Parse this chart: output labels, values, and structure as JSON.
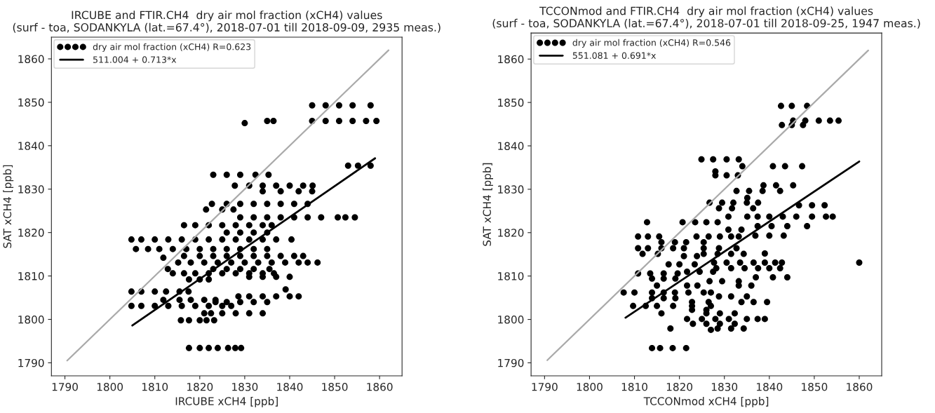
{
  "chart_data": [
    {
      "type": "scatter",
      "title": "IRCUBE and FTIR.CH4  dry air mol fraction (xCH4) values\n(surf - toa, SODANKYLA (lat.=67.4°), 2018-07-01 till 2018-09-09, 2935 meas.)",
      "xlabel": "IRCUBE xCH4 [ppb]",
      "ylabel": "SAT xCH4 [ppb]",
      "xlim": [
        1787,
        1865
      ],
      "ylim": [
        1787,
        1865
      ],
      "xticks": [
        1790,
        1800,
        1810,
        1820,
        1830,
        1840,
        1850,
        1860
      ],
      "yticks": [
        1790,
        1800,
        1810,
        1820,
        1830,
        1840,
        1850,
        1860
      ],
      "grid": false,
      "legend": "top left",
      "series": [
        {
          "name": "dry air mol fraction (xCH4) R=0.623",
          "color": "#000000",
          "marker": "circle",
          "x": [
            1845.0,
            1848.0,
            1851.0,
            1854.0,
            1858.0,
            1845.0,
            1848.0,
            1851.0,
            1854.0,
            1857.0,
            1859.3,
            1835.0,
            1836.4,
            1830.0,
            1853.0,
            1855.2,
            1858.0,
            1823.0,
            1826.0,
            1829.0,
            1832.4,
            1835.3,
            1827.8,
            1831.0,
            1834.0,
            1837.0,
            1840.0,
            1843.0,
            1845.1,
            1834.0,
            1838.0,
            1842.0,
            1845.0,
            1822.7,
            1826.0,
            1829.0,
            1832.0,
            1835.0,
            1838.0,
            1841.0,
            1844.0,
            1821.4,
            1825.0,
            1827.5,
            1829.0,
            1832.0,
            1835.0,
            1838.0,
            1841.0,
            1844.0,
            1847.0,
            1850.7,
            1852.4,
            1854.5,
            1816.5,
            1819.0,
            1822.0,
            1825.0,
            1828.0,
            1831.0,
            1834.0,
            1836.0,
            1826.0,
            1829.0,
            1832.0,
            1835.0,
            1804.8,
            1807.0,
            1810.0,
            1813.0,
            1816.0,
            1819.0,
            1822.0,
            1825.0,
            1828.0,
            1831.0,
            1834.0,
            1837.0,
            1840.4,
            1805.8,
            1808.5,
            1811.0,
            1814.0,
            1817.0,
            1820.0,
            1823.0,
            1826.0,
            1829.0,
            1832.0,
            1835.0,
            1816.5,
            1820.0,
            1823.0,
            1826.0,
            1829.0,
            1832.0,
            1835.0,
            1838.0,
            1841.0,
            1843.0,
            1811.9,
            1815.2,
            1818.0,
            1821.0,
            1824.0,
            1827.0,
            1830.0,
            1833.0,
            1836.0,
            1839.0,
            1842.0,
            1844.0,
            1846.2,
            1812.9,
            1823.0,
            1826.0,
            1829.0,
            1832.0,
            1835.5,
            1814.0,
            1816.5,
            1819.0,
            1822.0,
            1825.0,
            1828.0,
            1831.0,
            1834.0,
            1836.5,
            1831.0,
            1834.0,
            1837.0,
            1840.0,
            1817.6,
            1820.0,
            1822.0,
            1839.1,
            1804.8,
            1807.0,
            1810.0,
            1812.5,
            1815.5,
            1817.5,
            1828.6,
            1831.0,
            1834.0,
            1837.0,
            1840.0,
            1842.0,
            1811.9,
            1815.5,
            1818.0,
            1821.0,
            1823.5,
            1823.5,
            1826.0,
            1829.0,
            1832.0,
            1835.0,
            1804.8,
            1807.0,
            1810.0,
            1813.0,
            1816.0,
            1819.0,
            1822.0,
            1825.0,
            1827.0,
            1821.0,
            1822.5,
            1825.0,
            1828.0,
            1831.0,
            1834.0,
            1815.8,
            1817.6,
            1820.0,
            1821.5,
            1823.2,
            1817.6,
            1820.0,
            1822.0,
            1824.0,
            1826.3,
            1827.9,
            1829.2
          ],
          "values": [
            1849.3,
            1849.3,
            1849.3,
            1849.3,
            1849.3,
            1845.7,
            1845.7,
            1845.7,
            1845.7,
            1845.7,
            1845.7,
            1845.7,
            1845.7,
            1845.2,
            1835.4,
            1835.4,
            1835.4,
            1833.3,
            1833.3,
            1833.3,
            1833.3,
            1833.3,
            1830.8,
            1830.8,
            1830.8,
            1830.8,
            1830.8,
            1830.8,
            1830.8,
            1829.5,
            1829.5,
            1829.5,
            1829.5,
            1826.6,
            1826.6,
            1826.6,
            1826.6,
            1826.6,
            1826.6,
            1826.6,
            1826.6,
            1825.3,
            1825.3,
            1825.3,
            1823.5,
            1823.5,
            1823.5,
            1823.5,
            1823.5,
            1823.5,
            1823.5,
            1823.5,
            1823.5,
            1823.5,
            1821.7,
            1821.7,
            1821.7,
            1821.7,
            1821.7,
            1821.7,
            1821.7,
            1821.7,
            1820.0,
            1820.0,
            1820.0,
            1820.0,
            1818.4,
            1818.4,
            1818.4,
            1818.4,
            1818.4,
            1818.4,
            1818.4,
            1818.4,
            1818.4,
            1818.4,
            1818.4,
            1818.4,
            1818.4,
            1816.2,
            1816.2,
            1816.2,
            1816.2,
            1816.2,
            1816.2,
            1816.2,
            1816.2,
            1816.2,
            1816.2,
            1816.2,
            1814.6,
            1814.6,
            1814.6,
            1814.6,
            1814.6,
            1814.6,
            1814.6,
            1814.6,
            1814.6,
            1814.6,
            1814.2,
            1813.1,
            1813.1,
            1813.1,
            1813.1,
            1813.1,
            1813.1,
            1813.1,
            1813.1,
            1813.1,
            1813.1,
            1813.1,
            1813.1,
            1811.6,
            1811.6,
            1811.6,
            1811.6,
            1811.6,
            1811.6,
            1810.6,
            1810.6,
            1810.6,
            1810.6,
            1810.6,
            1810.6,
            1810.6,
            1810.6,
            1810.6,
            1809.8,
            1809.8,
            1809.8,
            1809.8,
            1809.2,
            1809.2,
            1809.2,
            1806.9,
            1806.4,
            1806.4,
            1806.4,
            1806.4,
            1806.4,
            1806.4,
            1805.3,
            1805.3,
            1805.3,
            1805.3,
            1805.3,
            1805.3,
            1804.5,
            1804.5,
            1804.5,
            1804.5,
            1804.5,
            1804.0,
            1804.0,
            1804.0,
            1804.0,
            1804.0,
            1803.1,
            1803.1,
            1803.1,
            1803.1,
            1803.1,
            1803.1,
            1803.1,
            1803.1,
            1803.1,
            1801.4,
            1801.4,
            1801.4,
            1801.4,
            1801.4,
            1801.4,
            1799.8,
            1799.8,
            1799.8,
            1799.8,
            1799.8,
            1793.4,
            1793.4,
            1793.4,
            1793.4,
            1793.4,
            1793.4,
            1793.4
          ]
        },
        {
          "type": "line",
          "name": "511.004 + 0.713*x",
          "color": "#000000",
          "x": [
            1805.0,
            1859.0
          ],
          "values": [
            1798.6,
            1837.1
          ]
        },
        {
          "type": "line",
          "color": "#aaaaaa",
          "x": [
            1790.5,
            1862.0
          ],
          "values": [
            1790.5,
            1862.0
          ]
        }
      ]
    },
    {
      "type": "scatter",
      "title": "TCCONmod and FTIR.CH4  dry air mol fraction (xCH4) values\n(surf - toa, SODANKYLA (lat.=67.4°), 2018-07-01 till 2018-09-25, 1947 meas.)",
      "xlabel": "TCCONmod xCH4 [ppb]",
      "ylabel": "SAT xCH4 [ppb]",
      "xlim": [
        1787,
        1865
      ],
      "ylim": [
        1787,
        1866
      ],
      "xticks": [
        1790,
        1800,
        1810,
        1820,
        1830,
        1840,
        1850,
        1860
      ],
      "yticks": [
        1790,
        1800,
        1810,
        1820,
        1830,
        1840,
        1850,
        1860
      ],
      "grid": false,
      "legend": "top left",
      "series": [
        {
          "name": "dry air mol fraction (xCH4) R=0.546",
          "color": "#000000",
          "marker": "circle",
          "x": [
            1842.6,
            1845.0,
            1848.4,
            1845.3,
            1848.0,
            1851.0,
            1853.5,
            1855.4,
            1842.8,
            1845.0,
            1847.5,
            1824.9,
            1827.5,
            1830.5,
            1833.2,
            1834.0,
            1840.8,
            1843.5,
            1847.3,
            1828.0,
            1828.0,
            1830.5,
            1833.0,
            1838.7,
            1841.5,
            1845.3,
            1832.7,
            1835.5,
            1838.5,
            1842.4,
            1835.1,
            1826.7,
            1829.5,
            1832.0,
            1835.0,
            1837.5,
            1846.6,
            1849.5,
            1852.3,
            1828.8,
            1831.7,
            1836.4,
            1830.9,
            1835.1,
            1837.4,
            1840.0,
            1843.0,
            1846.0,
            1849.5,
            1852.6,
            1854.1,
            1812.8,
            1820.7,
            1823.5,
            1826.0,
            1828.5,
            1837.4,
            1840.5,
            1844.0,
            1848.4,
            1830.9,
            1833.8,
            1836.9,
            1840.0,
            1843.2,
            1810.8,
            1813.0,
            1815.5,
            1823.8,
            1826.5,
            1829.0,
            1831.5,
            1833.2,
            1816.0,
            1819.0,
            1821.5,
            1825.4,
            1810.8,
            1813.0,
            1816.0,
            1818.6,
            1821.0,
            1825.4,
            1828.8,
            1832.7,
            1811.8,
            1815.2,
            1825.4,
            1828.5,
            1831.5,
            1834.3,
            1839.0,
            1821.0,
            1823.9,
            1827.7,
            1830.5,
            1833.5,
            1836.5,
            1839.0,
            1841.3,
            1842.8,
            1860.0,
            1817.6,
            1820.0,
            1823.4,
            1828.2,
            1831.5,
            1834.5,
            1837.5,
            1840.0,
            1842.4,
            1821.7,
            1824.5,
            1827.5,
            1810.8,
            1813.5,
            1816.5,
            1819.6,
            1837.0,
            1840.8,
            1844.0,
            1813.9,
            1816.5,
            1819.1,
            1826.7,
            1829.5,
            1833.2,
            1821.7,
            1824.0,
            1815.0,
            1833.2,
            1836.0,
            1807.6,
            1810.0,
            1813.9,
            1816.5,
            1819.0,
            1822.0,
            1825.4,
            1827.0,
            1828.8,
            1831.5,
            1835.0,
            1813.9,
            1816.5,
            1819.1,
            1822.8,
            1826.5,
            1833.8,
            1836.5,
            1839.5,
            1809.7,
            1812.5,
            1815.0,
            1818.6,
            1822.8,
            1827.0,
            1822.8,
            1826.0,
            1816.0,
            1826.0,
            1829.0,
            1832.3,
            1821.7,
            1825.0,
            1828.0,
            1831.0,
            1835.0,
            1837.4,
            1839.0,
            1823.0,
            1826.0,
            1829.0,
            1832.3,
            1818.0,
            1828.5,
            1831.5,
            1834.3,
            1827.0,
            1813.9,
            1815.7,
            1818.5,
            1821.5
          ],
          "values": [
            1849.2,
            1849.2,
            1849.2,
            1845.8,
            1845.8,
            1845.8,
            1845.8,
            1845.8,
            1844.8,
            1844.8,
            1844.8,
            1836.9,
            1836.9,
            1836.9,
            1836.9,
            1835.3,
            1835.3,
            1835.3,
            1835.3,
            1834.1,
            1833.2,
            1833.2,
            1833.2,
            1830.9,
            1830.9,
            1830.9,
            1829.6,
            1829.6,
            1829.6,
            1829.6,
            1828.0,
            1826.9,
            1826.9,
            1826.9,
            1826.9,
            1826.9,
            1826.3,
            1826.3,
            1826.3,
            1825.6,
            1825.6,
            1825.6,
            1823.7,
            1823.7,
            1823.7,
            1823.7,
            1823.7,
            1823.7,
            1823.7,
            1823.7,
            1823.7,
            1822.4,
            1822.4,
            1822.4,
            1822.4,
            1822.4,
            1821.5,
            1821.5,
            1821.5,
            1821.5,
            1820.7,
            1820.7,
            1819.3,
            1819.3,
            1819.3,
            1819.1,
            1819.1,
            1819.1,
            1819.1,
            1819.1,
            1819.1,
            1819.1,
            1819.1,
            1817.8,
            1817.8,
            1817.8,
            1817.8,
            1816.4,
            1816.4,
            1816.4,
            1816.4,
            1816.4,
            1816.4,
            1816.4,
            1816.4,
            1815.1,
            1815.1,
            1815.1,
            1815.1,
            1815.1,
            1815.1,
            1815.2,
            1814.6,
            1814.6,
            1813.1,
            1813.1,
            1813.1,
            1813.1,
            1813.1,
            1813.1,
            1813.1,
            1813.1,
            1812.7,
            1812.7,
            1812.7,
            1811.8,
            1811.8,
            1811.8,
            1811.8,
            1811.8,
            1811.8,
            1811.0,
            1811.0,
            1811.0,
            1810.6,
            1810.6,
            1810.6,
            1810.6,
            1809.7,
            1809.7,
            1809.7,
            1809.4,
            1809.4,
            1809.4,
            1808.8,
            1808.8,
            1808.8,
            1807.8,
            1807.8,
            1807.8,
            1807.8,
            1807.8,
            1806.2,
            1806.2,
            1806.2,
            1806.2,
            1806.2,
            1806.2,
            1806.2,
            1806.2,
            1805.3,
            1805.3,
            1805.3,
            1804.9,
            1804.9,
            1804.9,
            1804.0,
            1804.0,
            1804.0,
            1804.0,
            1804.0,
            1803.1,
            1803.1,
            1803.1,
            1803.1,
            1803.1,
            1803.1,
            1802.2,
            1802.2,
            1801.4,
            1801.4,
            1801.4,
            1801.4,
            1800.1,
            1800.1,
            1800.1,
            1800.1,
            1800.1,
            1800.1,
            1800.1,
            1799.0,
            1799.0,
            1799.0,
            1799.0,
            1797.9,
            1797.9,
            1797.9,
            1797.9,
            1797.6,
            1793.4,
            1793.4,
            1793.4,
            1793.4
          ]
        },
        {
          "type": "line",
          "name": "551.081 + 0.691*x",
          "color": "#000000",
          "x": [
            1808.0,
            1860.0
          ],
          "values": [
            1800.4,
            1836.4
          ]
        },
        {
          "type": "line",
          "color": "#aaaaaa",
          "x": [
            1790.6,
            1862.0
          ],
          "values": [
            1790.6,
            1862.0
          ]
        }
      ]
    }
  ]
}
